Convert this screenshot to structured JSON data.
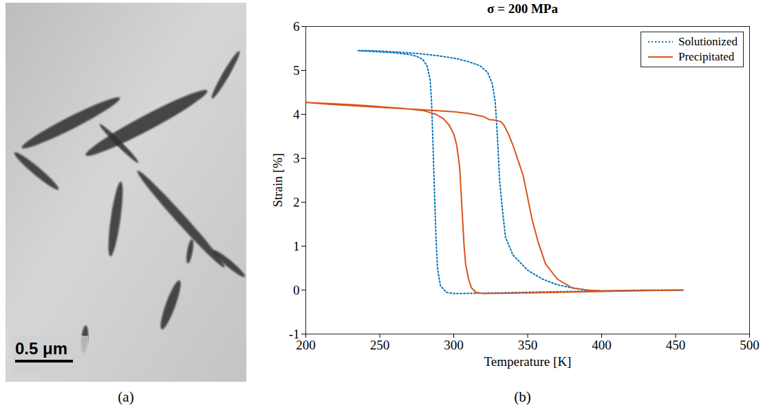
{
  "panel_labels": [
    "(a)",
    "(b)"
  ],
  "micrograph": {
    "scale_bar_label": "0.5 μm"
  },
  "chart_data": {
    "type": "line",
    "title": "σ = 200 MPa",
    "x_label": "Temperature [K]",
    "y_label": "Strain [%]",
    "xlim": [
      200,
      500
    ],
    "xticks": [
      200,
      250,
      300,
      350,
      400,
      450,
      500
    ],
    "ylim": [
      -1,
      6
    ],
    "yticks": [
      -1,
      0,
      1,
      2,
      3,
      4,
      5,
      6
    ],
    "grid": false,
    "legend": "top-right",
    "series": [
      {
        "name": "Solutionized",
        "color": "#0072bd",
        "line_style": "dotted",
        "x": [
          455,
          430,
          400,
          390,
          380,
          370,
          360,
          350,
          340,
          335,
          333,
          331,
          330,
          329,
          328,
          326,
          323,
          318,
          310,
          300,
          290,
          280,
          270,
          260,
          250,
          240,
          235,
          240,
          250,
          260,
          270,
          275,
          279,
          282,
          284,
          285,
          286,
          287,
          288,
          289,
          291,
          295,
          300,
          320,
          350,
          380,
          400,
          430,
          455
        ],
        "values": [
          0,
          0,
          -0.02,
          0,
          0.05,
          0.12,
          0.25,
          0.45,
          0.8,
          1.2,
          1.8,
          2.5,
          3.2,
          3.8,
          4.3,
          4.7,
          4.95,
          5.1,
          5.2,
          5.28,
          5.33,
          5.37,
          5.4,
          5.42,
          5.44,
          5.45,
          5.45,
          5.44,
          5.42,
          5.4,
          5.36,
          5.32,
          5.25,
          5.1,
          4.8,
          4.3,
          3.3,
          2.2,
          1.2,
          0.5,
          0.1,
          -0.05,
          -0.08,
          -0.07,
          -0.05,
          -0.03,
          -0.02,
          -0.01,
          0
        ]
      },
      {
        "name": "Precipitated",
        "color": "#d95319",
        "line_style": "solid",
        "x": [
          455,
          430,
          400,
          390,
          380,
          370,
          362,
          357,
          353,
          350,
          347,
          344,
          342,
          340,
          337,
          334,
          332,
          330,
          327,
          324,
          320,
          310,
          300,
          280,
          260,
          240,
          220,
          200,
          220,
          240,
          260,
          270,
          280,
          288,
          293,
          297,
          300,
          302,
          304,
          305,
          306,
          307,
          308,
          310,
          312,
          315,
          320,
          340,
          370,
          400,
          430,
          455
        ],
        "values": [
          0,
          -0.01,
          -0.02,
          0,
          0.05,
          0.25,
          0.6,
          1.1,
          1.6,
          2.1,
          2.6,
          2.9,
          3.1,
          3.3,
          3.55,
          3.75,
          3.83,
          3.85,
          3.87,
          3.88,
          3.95,
          4.02,
          4.06,
          4.1,
          4.14,
          4.18,
          4.22,
          4.27,
          4.24,
          4.2,
          4.15,
          4.12,
          4.08,
          4.0,
          3.9,
          3.75,
          3.55,
          3.3,
          2.8,
          2.2,
          1.6,
          1.0,
          0.6,
          0.25,
          0.05,
          -0.05,
          -0.08,
          -0.07,
          -0.05,
          -0.03,
          -0.01,
          0
        ]
      }
    ]
  }
}
